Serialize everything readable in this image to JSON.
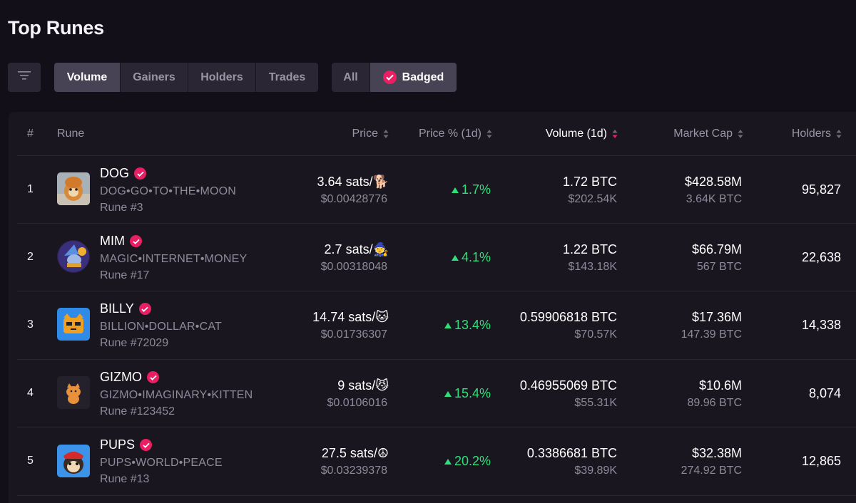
{
  "page": {
    "title": "Top Runes"
  },
  "toolbar": {
    "sort_tabs": [
      "Volume",
      "Gainers",
      "Holders",
      "Trades"
    ],
    "active_sort": "Volume",
    "scope_all": "All",
    "scope_badged": "Badged"
  },
  "columns": {
    "rank": "#",
    "rune": "Rune",
    "price": "Price",
    "price_change": "Price % (1d)",
    "volume": "Volume (1d)",
    "market_cap": "Market Cap",
    "holders": "Holders"
  },
  "rows": [
    {
      "rank": "1",
      "name": "DOG",
      "spaced": "DOG•GO•TO•THE•MOON",
      "id": "Rune #3",
      "price_sats": "3.64 sats/🐕",
      "price_usd": "$0.00428776",
      "change": "1.7%",
      "volume_btc": "1.72 BTC",
      "volume_usd": "$202.54K",
      "mcap_usd": "$428.58M",
      "mcap_btc": "3.64K BTC",
      "holders": "95,827"
    },
    {
      "rank": "2",
      "name": "MIM",
      "spaced": "MAGIC•INTERNET•MONEY",
      "id": "Rune #17",
      "price_sats": "2.7 sats/🧙",
      "price_usd": "$0.00318048",
      "change": "4.1%",
      "volume_btc": "1.22 BTC",
      "volume_usd": "$143.18K",
      "mcap_usd": "$66.79M",
      "mcap_btc": "567 BTC",
      "holders": "22,638"
    },
    {
      "rank": "3",
      "name": "BILLY",
      "spaced": "BILLION•DOLLAR•CAT",
      "id": "Rune #72029",
      "price_sats": "14.74 sats/🐱",
      "price_usd": "$0.01736307",
      "change": "13.4%",
      "volume_btc": "0.59906818 BTC",
      "volume_usd": "$70.57K",
      "mcap_usd": "$17.36M",
      "mcap_btc": "147.39 BTC",
      "holders": "14,338"
    },
    {
      "rank": "4",
      "name": "GIZMO",
      "spaced": "GIZMO•IMAGINARY•KITTEN",
      "id": "Rune #123452",
      "price_sats": "9 sats/😼",
      "price_usd": "$0.0106016",
      "change": "15.4%",
      "volume_btc": "0.46955069 BTC",
      "volume_usd": "$55.31K",
      "mcap_usd": "$10.6M",
      "mcap_btc": "89.96 BTC",
      "holders": "8,074"
    },
    {
      "rank": "5",
      "name": "PUPS",
      "spaced": "PUPS•WORLD•PEACE",
      "id": "Rune #13",
      "price_sats": "27.5 sats/☮",
      "price_usd": "$0.03239378",
      "change": "20.2%",
      "volume_btc": "0.3386681 BTC",
      "volume_usd": "$39.89K",
      "mcap_usd": "$32.38M",
      "mcap_btc": "274.92 BTC",
      "holders": "12,865"
    }
  ],
  "colors": {
    "accent": "#e91e63",
    "positive": "#2ee07a",
    "background": "#120f18",
    "card": "#19161f"
  },
  "icons": {
    "filter": "filter-lines-icon",
    "badge": "check-badge-icon",
    "sort": "sort-arrows-icon"
  }
}
